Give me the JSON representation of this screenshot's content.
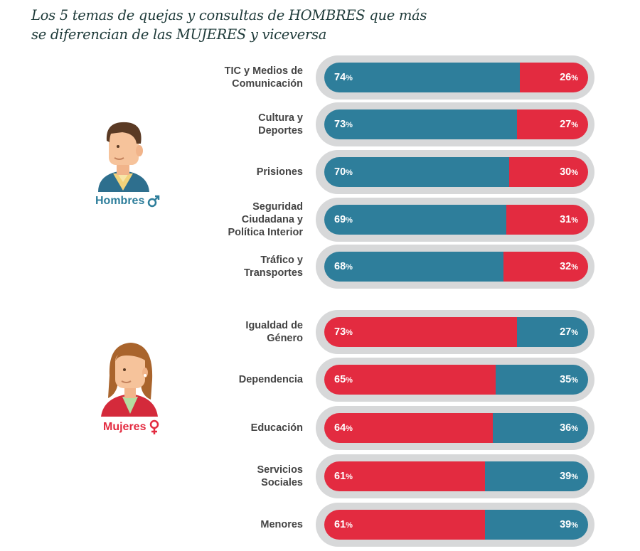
{
  "title_lines": [
    "Los 5 temas de quejas y consultas de HOMBRES que más",
    "se diferencian de las MUJERES y viceversa"
  ],
  "colors": {
    "hombres": "#2e7e9b",
    "mujeres": "#e32b40",
    "track": "#d7d8d9"
  },
  "figures": {
    "hombres": {
      "label": "Hombres",
      "icon": "male-symbol-icon"
    },
    "mujeres": {
      "label": "Mujeres",
      "icon": "female-symbol-icon"
    }
  },
  "chart_data": {
    "type": "bar",
    "orientation": "horizontal",
    "stacked": "100%",
    "title": "Los 5 temas de quejas y consultas de HOMBRES que más se diferencian de las MUJERES y viceversa",
    "groups": [
      {
        "name": "Hombres",
        "categories": [
          {
            "label_lines": [
              "TIC y Medios de",
              "Comunicación"
            ],
            "hombres": 74,
            "mujeres": 26
          },
          {
            "label_lines": [
              "Cultura y",
              "Deportes"
            ],
            "hombres": 73,
            "mujeres": 27
          },
          {
            "label_lines": [
              "Prisiones"
            ],
            "hombres": 70,
            "mujeres": 30
          },
          {
            "label_lines": [
              "Seguridad",
              "Ciudadana y",
              "Política Interior"
            ],
            "hombres": 69,
            "mujeres": 31
          },
          {
            "label_lines": [
              "Tráfico y",
              "Transportes"
            ],
            "hombres": 68,
            "mujeres": 32
          }
        ]
      },
      {
        "name": "Mujeres",
        "categories": [
          {
            "label_lines": [
              "Igualdad de",
              "Género"
            ],
            "mujeres": 73,
            "hombres": 27
          },
          {
            "label_lines": [
              "Dependencia"
            ],
            "mujeres": 65,
            "hombres": 35
          },
          {
            "label_lines": [
              "Educación"
            ],
            "mujeres": 64,
            "hombres": 36
          },
          {
            "label_lines": [
              "Servicios",
              "Sociales"
            ],
            "mujeres": 61,
            "hombres": 39
          },
          {
            "label_lines": [
              "Menores"
            ],
            "mujeres": 61,
            "hombres": 39
          }
        ]
      }
    ],
    "value_suffix": "%"
  }
}
